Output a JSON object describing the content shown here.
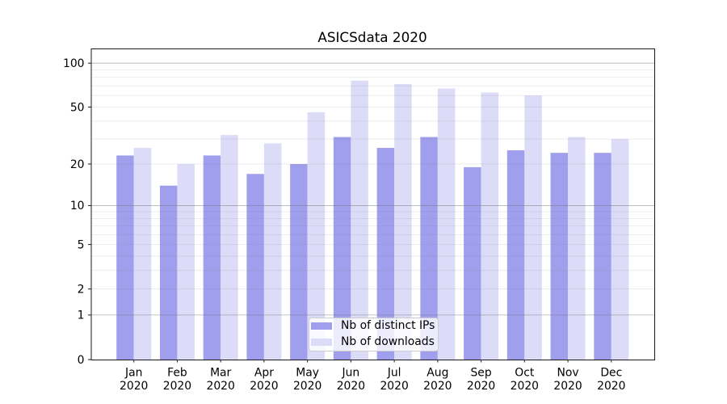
{
  "chart_data": {
    "type": "bar",
    "title": "ASICSdata 2020",
    "categories": [
      "Jan",
      "Feb",
      "Mar",
      "Apr",
      "May",
      "Jun",
      "Jul",
      "Aug",
      "Sep",
      "Oct",
      "Nov",
      "Dec"
    ],
    "x_tick_second_line": "2020",
    "series": [
      {
        "name": "Nb of distinct IPs",
        "color": "#9f9fee",
        "values": [
          23,
          14,
          23,
          17,
          20,
          31,
          26,
          31,
          19,
          25,
          24,
          24
        ]
      },
      {
        "name": "Nb of downloads",
        "color": "#dcdcf8",
        "values": [
          26,
          20,
          32,
          28,
          46,
          76,
          72,
          67,
          63,
          60,
          31,
          30
        ]
      }
    ],
    "xlabel": "",
    "ylabel": "",
    "yscale": "log10(1+v)",
    "ylim": [
      0,
      126
    ],
    "yticks": [
      0,
      1,
      2,
      5,
      10,
      20,
      50,
      100
    ],
    "y_major_gridlines": [
      1,
      10,
      100
    ],
    "y_minor_gridlines": [
      2,
      3,
      4,
      5,
      6,
      7,
      8,
      9,
      20,
      30,
      40,
      50,
      60,
      70,
      80,
      90
    ],
    "grid": "horizontal major and minor gridlines drawn over the bars",
    "legend_position": "lower center",
    "style": {
      "background": "#ffffff",
      "grid_major_color": "rgba(115,115,115,0.55)",
      "grid_minor_color": "rgba(128,128,128,0.2)",
      "spine_color": "#1a1a1a",
      "tick_color": "#1a1a1a",
      "text_color": "#000000",
      "legend_border_color": "#cccccc"
    }
  }
}
